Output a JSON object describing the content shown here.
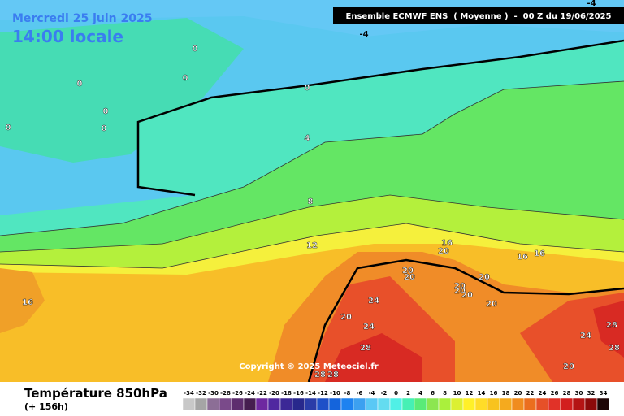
{
  "header": {
    "date": "Mercredi 25 juin 2025",
    "time": "14:00 locale",
    "model": "Ensemble ECMWF ENS  ( Moyenne )  -  00 Z du 19/06/2025"
  },
  "footer": {
    "title": "Température 850hPa",
    "lead": "(+ 156h)",
    "copyright": "Copyright © 2025 Meteociel.fr"
  },
  "contour_labels": [
    -4,
    -4,
    0,
    0,
    0,
    0,
    0,
    0,
    0,
    4,
    8,
    12,
    16,
    16,
    20,
    20,
    20,
    24,
    20,
    24,
    28,
    28,
    28,
    20,
    20,
    20,
    20,
    20,
    16,
    16,
    24,
    28,
    28,
    20
  ],
  "legend": [
    {
      "value": -34,
      "color": "#c8c8c8"
    },
    {
      "value": -32,
      "color": "#a5a5a5"
    },
    {
      "value": -30,
      "color": "#8c6e96"
    },
    {
      "value": -28,
      "color": "#7a4a8a"
    },
    {
      "value": -26,
      "color": "#5e2d6e"
    },
    {
      "value": -24,
      "color": "#461e50"
    },
    {
      "value": -22,
      "color": "#6e28a0"
    },
    {
      "value": -20,
      "color": "#5028a0"
    },
    {
      "value": -18,
      "color": "#3c2896"
    },
    {
      "value": -16,
      "color": "#28288c"
    },
    {
      "value": -14,
      "color": "#2a3ca8"
    },
    {
      "value": -12,
      "color": "#1e50c8"
    },
    {
      "value": -10,
      "color": "#1464dc"
    },
    {
      "value": -8,
      "color": "#1e82f0"
    },
    {
      "value": -6,
      "color": "#3ca0f0"
    },
    {
      "value": -4,
      "color": "#5ac8f5"
    },
    {
      "value": -2,
      "color": "#64dcf0"
    },
    {
      "value": 0,
      "color": "#50f0e6"
    },
    {
      "value": 2,
      "color": "#46f0b4"
    },
    {
      "value": 4,
      "color": "#5aeb78"
    },
    {
      "value": 6,
      "color": "#8ce650"
    },
    {
      "value": 8,
      "color": "#aaf03c"
    },
    {
      "value": 10,
      "color": "#dcf032"
    },
    {
      "value": 12,
      "color": "#fff028"
    },
    {
      "value": 14,
      "color": "#ffdc28"
    },
    {
      "value": 16,
      "color": "#f8c31e"
    },
    {
      "value": 18,
      "color": "#f5aa1e"
    },
    {
      "value": 20,
      "color": "#f08c1e"
    },
    {
      "value": 22,
      "color": "#eb6e1e"
    },
    {
      "value": 24,
      "color": "#e65028"
    },
    {
      "value": 26,
      "color": "#e13228"
    },
    {
      "value": 28,
      "color": "#d21e1e"
    },
    {
      "value": 30,
      "color": "#b41414"
    },
    {
      "value": 32,
      "color": "#8c0a0a"
    },
    {
      "value": 34,
      "color": "#1e0505"
    }
  ]
}
